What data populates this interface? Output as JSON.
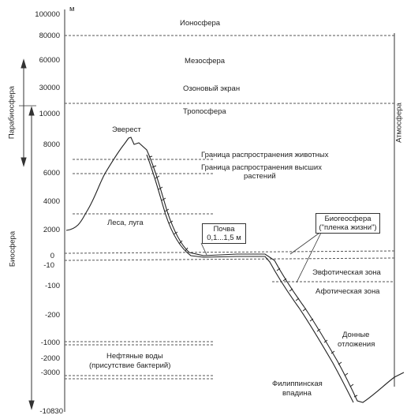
{
  "axis": {
    "unit": "м",
    "ticks": [
      "100000",
      "80000",
      "60000",
      "30000",
      "10000",
      "8000",
      "6000",
      "4000",
      "2000",
      "0",
      "-10",
      "-100",
      "-200",
      "-1000",
      "-2000",
      "-3000",
      "-10830"
    ]
  },
  "layers": {
    "ionosphere": "Ионосфера",
    "mesosphere": "Мезосфера",
    "ozone": "Озоновый экран",
    "troposphere": "Тропосфера"
  },
  "labels": {
    "everest": "Эверест",
    "animals_limit": "Граница распространения животных",
    "plants_limit_line1": "Граница распространения высших",
    "plants_limit_line2": "растений",
    "forests": "Леса, луга",
    "soil_line1": "Почва",
    "soil_line2": "0,1...1,5 м",
    "biogeosphere_line1": "Биогеосфера",
    "biogeosphere_line2": "(\"пленка жизни\")",
    "euphotic": "Эвфотическая зона",
    "aphotic": "Афотическая зона",
    "sediments_line1": "Донные",
    "sediments_line2": "отложения",
    "oil_waters_line1": "Нефтяные воды",
    "oil_waters_line2": "(присутствие бактерий)",
    "philippine_line1": "Филиппинская",
    "philippine_line2": "впадина"
  },
  "side_labels": {
    "parabiosphere": "Парабиосфера",
    "biosphere": "Биосфера",
    "atmosphere": "Атмосфера"
  }
}
